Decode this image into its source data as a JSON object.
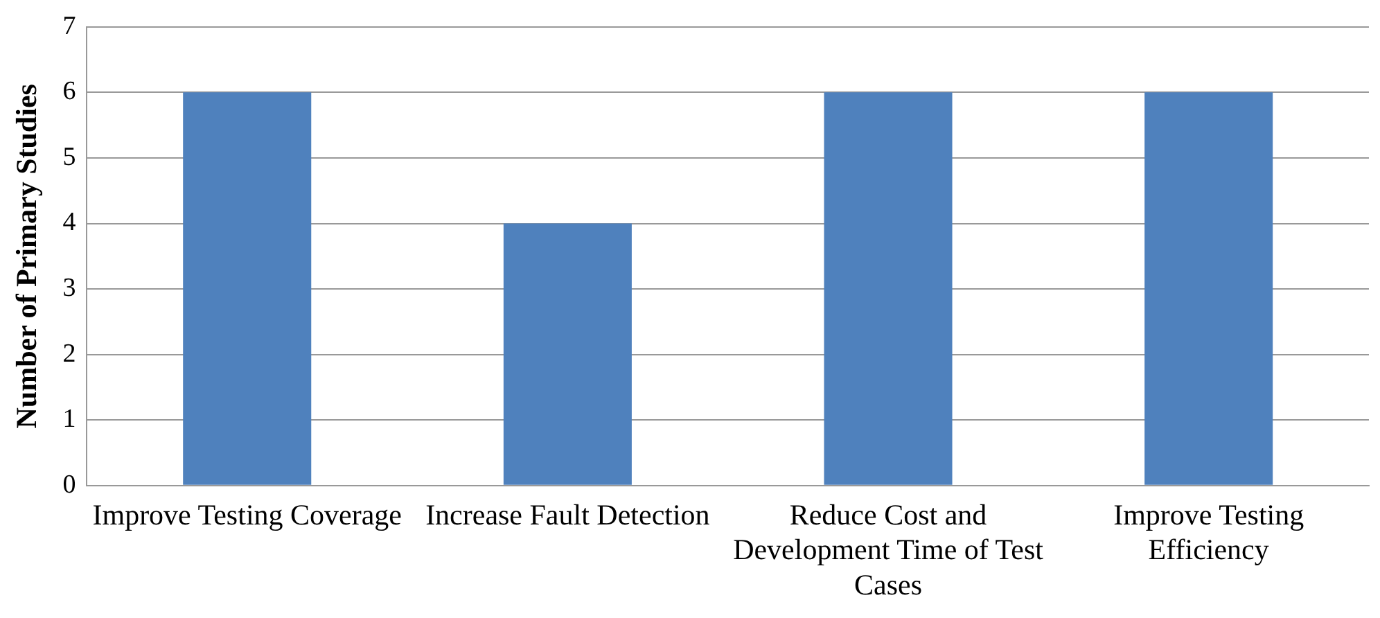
{
  "chart_data": {
    "type": "bar",
    "ylabel": "Number of Primary Studies",
    "categories": [
      "Improve Testing Coverage",
      "Increase Fault Detection",
      "Reduce Cost and Development Time of Test Cases",
      "Improve Testing Efficiency"
    ],
    "values": [
      6,
      4,
      6,
      6
    ],
    "color": "#4f81bd",
    "ylim": [
      0,
      7
    ],
    "yticks": [
      0,
      1,
      2,
      3,
      4,
      5,
      6,
      7
    ],
    "grid": "y",
    "legend": false
  }
}
